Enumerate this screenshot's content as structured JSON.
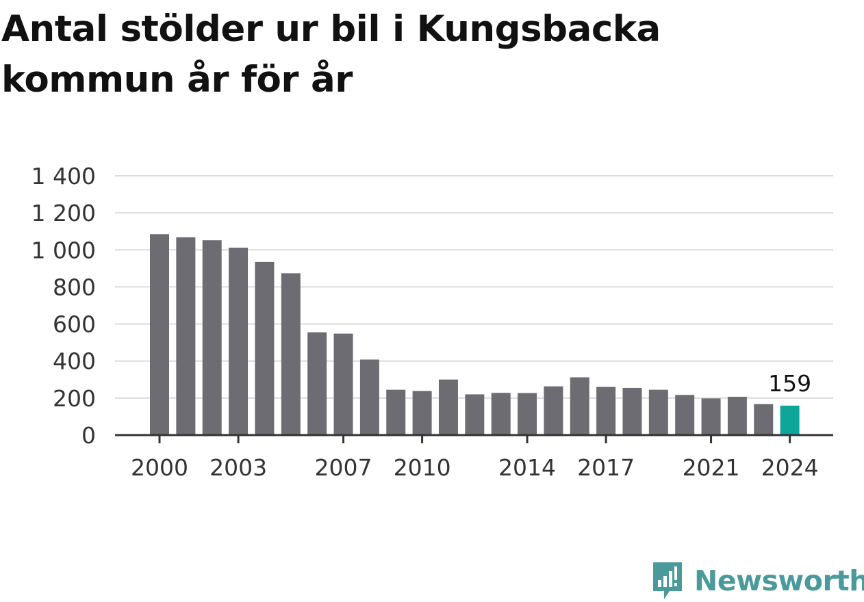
{
  "chart_data": {
    "type": "bar",
    "title": "Antal stölder ur bil i Kungsbacka kommun år för år",
    "xlabel": "",
    "ylabel": "",
    "ylim": [
      0,
      1400
    ],
    "yticks": [
      {
        "value": 0,
        "label": "0"
      },
      {
        "value": 200,
        "label": "200"
      },
      {
        "value": 400,
        "label": "400"
      },
      {
        "value": 600,
        "label": "600"
      },
      {
        "value": 800,
        "label": "800"
      },
      {
        "value": 1000,
        "label": "1 000"
      },
      {
        "value": 1200,
        "label": "1 200"
      },
      {
        "value": 1400,
        "label": "1 400"
      }
    ],
    "grid": true,
    "categories": [
      "2000",
      "2001",
      "2002",
      "2003",
      "2004",
      "2005",
      "2006",
      "2007",
      "2008",
      "2009",
      "2010",
      "2011",
      "2012",
      "2013",
      "2014",
      "2015",
      "2016",
      "2017",
      "2018",
      "2019",
      "2020",
      "2021",
      "2022",
      "2023",
      "2024"
    ],
    "values": [
      1085,
      1068,
      1052,
      1012,
      935,
      874,
      555,
      548,
      408,
      245,
      238,
      300,
      220,
      228,
      227,
      263,
      312,
      260,
      255,
      245,
      217,
      198,
      207,
      167,
      159
    ],
    "xtick_labels": [
      "2000",
      "2003",
      "2007",
      "2010",
      "2014",
      "2017",
      "2021",
      "2024"
    ],
    "highlight_index": 24,
    "highlight_label": "159",
    "colors": {
      "bar": "#6d6c72",
      "highlight": "#0ea59a",
      "grid": "#dcdcdc",
      "axis": "#333333"
    }
  },
  "brand": {
    "name": "Newsworthy",
    "icon": "newsworthy-logo-icon",
    "color": "#4a9a9c"
  }
}
